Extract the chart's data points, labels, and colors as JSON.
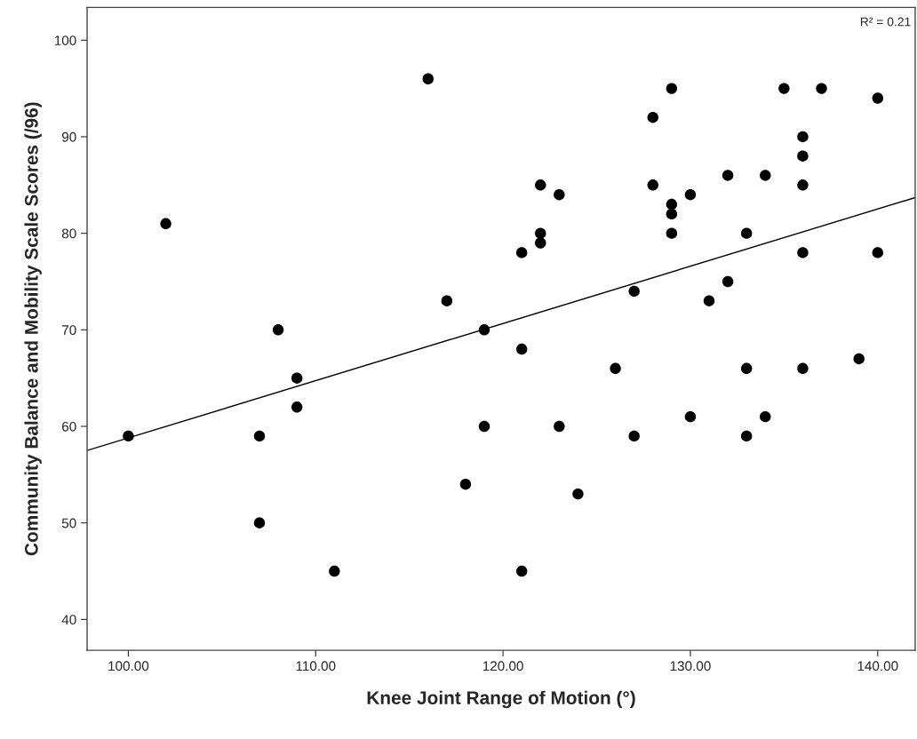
{
  "chart_data": {
    "type": "scatter",
    "xlabel": "Knee Joint Range of Motion (°)",
    "ylabel": "Community Balance and Mobility Scale Scores (/96)",
    "annotations": [
      "R² = 0.21"
    ],
    "xlim": [
      97.8,
      142
    ],
    "ylim": [
      36.8,
      103.4
    ],
    "xticks": [
      {
        "value": 100,
        "label": "100.00"
      },
      {
        "value": 110,
        "label": "110.00"
      },
      {
        "value": 120,
        "label": "120.00"
      },
      {
        "value": 130,
        "label": "130.00"
      },
      {
        "value": 140,
        "label": "140.00"
      }
    ],
    "yticks": [
      40,
      50,
      60,
      70,
      80,
      90,
      100
    ],
    "grid": false,
    "legend": false,
    "series": [
      {
        "color": "#000000",
        "marker": "circle",
        "x": [
          100,
          102,
          107,
          107,
          108,
          109,
          109,
          111,
          116,
          117,
          118,
          119,
          119,
          121,
          121,
          121,
          122,
          122,
          122,
          123,
          123,
          124,
          126,
          127,
          127,
          128,
          128,
          129,
          129,
          129,
          129,
          130,
          130,
          131,
          132,
          132,
          133,
          133,
          133,
          134,
          134,
          135,
          136,
          136,
          136,
          136,
          136,
          137,
          139,
          140,
          140
        ],
        "values": [
          59,
          81,
          59,
          50,
          70,
          65,
          62,
          45,
          96,
          73,
          54,
          70,
          60,
          78,
          68,
          45,
          85,
          80,
          79,
          84,
          60,
          53,
          66,
          74,
          59,
          92,
          85,
          95,
          83,
          82,
          80,
          84,
          61,
          73,
          86,
          75,
          80,
          66,
          59,
          86,
          61,
          95,
          90,
          88,
          85,
          78,
          66,
          95,
          67,
          94,
          78
        ]
      },
      {
        "type": "line",
        "color": "#000000",
        "line_style": "solid",
        "marker": "none",
        "x": [
          97.8,
          142
        ],
        "values": [
          57.5,
          83.7
        ]
      }
    ]
  }
}
